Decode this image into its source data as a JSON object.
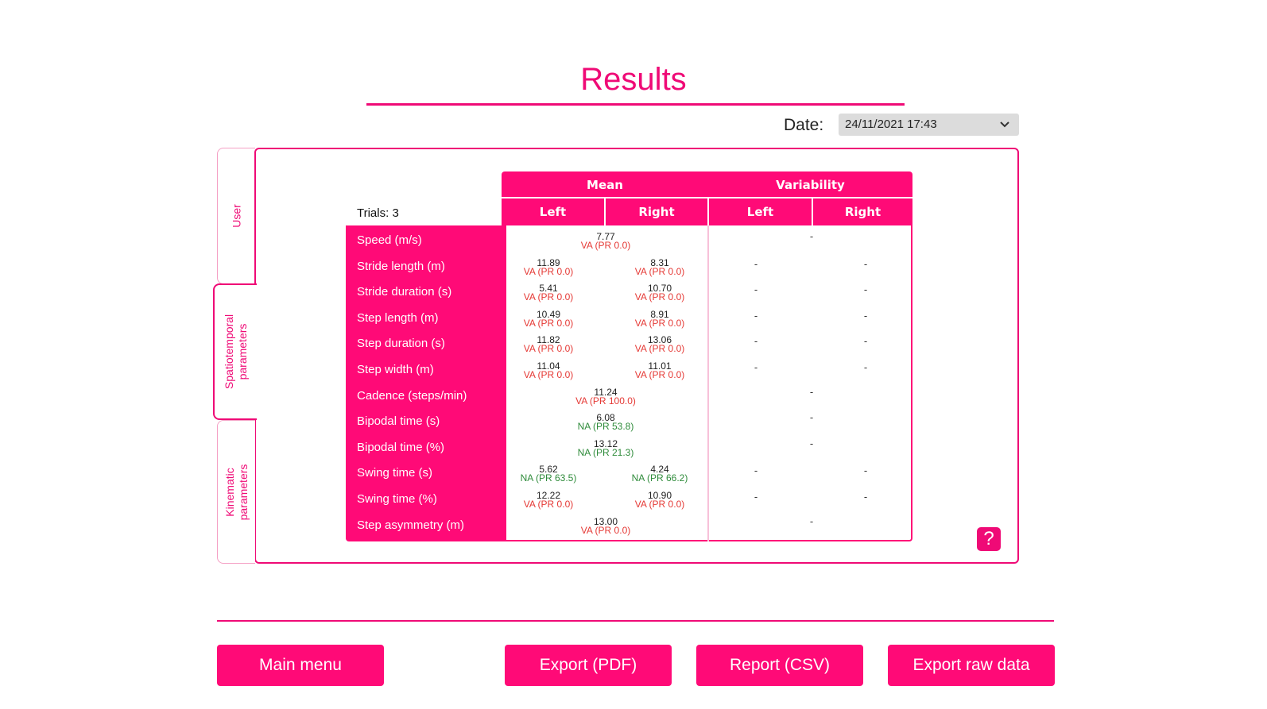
{
  "page": {
    "title": "Results"
  },
  "date": {
    "label": "Date:",
    "selected": "24/11/2021 17:43"
  },
  "tabs": [
    {
      "label": "User"
    },
    {
      "label": "Spatiotemporal\nparameters"
    },
    {
      "label": "Kinematic\nparameters"
    }
  ],
  "table": {
    "trials": "Trials: 3",
    "groups": [
      "Mean",
      "Variability"
    ],
    "subheaders": [
      "Left",
      "Right",
      "Left",
      "Right"
    ],
    "colors": {
      "VA": "#e53935",
      "NA": "#2e8b3a"
    },
    "rows": [
      {
        "label": "Speed (m/s)",
        "merged": true,
        "mean": {
          "v": "7.77",
          "s": "VA (PR 0.0)",
          "t": "VA"
        },
        "var": "-"
      },
      {
        "label": "Stride length (m)",
        "merged": false,
        "left": {
          "v": "11.89",
          "s": "VA (PR 0.0)",
          "t": "VA"
        },
        "right": {
          "v": "8.31",
          "s": "VA (PR 0.0)",
          "t": "VA"
        },
        "varL": "-",
        "varR": "-"
      },
      {
        "label": "Stride duration (s)",
        "merged": false,
        "left": {
          "v": "5.41",
          "s": "VA (PR 0.0)",
          "t": "VA"
        },
        "right": {
          "v": "10.70",
          "s": "VA (PR 0.0)",
          "t": "VA"
        },
        "varL": "-",
        "varR": "-"
      },
      {
        "label": "Step length (m)",
        "merged": false,
        "left": {
          "v": "10.49",
          "s": "VA (PR 0.0)",
          "t": "VA"
        },
        "right": {
          "v": "8.91",
          "s": "VA (PR 0.0)",
          "t": "VA"
        },
        "varL": "-",
        "varR": "-"
      },
      {
        "label": "Step duration (s)",
        "merged": false,
        "left": {
          "v": "11.82",
          "s": "VA (PR 0.0)",
          "t": "VA"
        },
        "right": {
          "v": "13.06",
          "s": "VA (PR 0.0)",
          "t": "VA"
        },
        "varL": "-",
        "varR": "-"
      },
      {
        "label": "Step width (m)",
        "merged": false,
        "left": {
          "v": "11.04",
          "s": "VA (PR 0.0)",
          "t": "VA"
        },
        "right": {
          "v": "11.01",
          "s": "VA (PR 0.0)",
          "t": "VA"
        },
        "varL": "-",
        "varR": "-"
      },
      {
        "label": "Cadence (steps/min)",
        "merged": true,
        "mean": {
          "v": "11.24",
          "s": "VA (PR 100.0)",
          "t": "VA"
        },
        "var": "-"
      },
      {
        "label": "Bipodal time (s)",
        "merged": true,
        "mean": {
          "v": "6.08",
          "s": "NA (PR 53.8)",
          "t": "NA"
        },
        "var": "-"
      },
      {
        "label": "Bipodal time (%)",
        "merged": true,
        "mean": {
          "v": "13.12",
          "s": "NA (PR 21.3)",
          "t": "NA"
        },
        "var": "-"
      },
      {
        "label": "Swing time (s)",
        "merged": false,
        "left": {
          "v": "5.62",
          "s": "NA (PR 63.5)",
          "t": "NA"
        },
        "right": {
          "v": "4.24",
          "s": "NA (PR 66.2)",
          "t": "NA"
        },
        "varL": "-",
        "varR": "-"
      },
      {
        "label": "Swing time (%)",
        "merged": false,
        "left": {
          "v": "12.22",
          "s": "VA (PR 0.0)",
          "t": "VA"
        },
        "right": {
          "v": "10.90",
          "s": "VA (PR 0.0)",
          "t": "VA"
        },
        "varL": "-",
        "varR": "-"
      },
      {
        "label": "Step asymmetry (m)",
        "merged": true,
        "mean": {
          "v": "13.00",
          "s": "VA (PR 0.0)",
          "t": "VA"
        },
        "var": "-"
      }
    ]
  },
  "help": {
    "label": "?"
  },
  "buttons": {
    "main_menu": "Main menu",
    "export_pdf": "Export (PDF)",
    "report_csv": "Report (CSV)",
    "export_raw": "Export raw data"
  },
  "icons": {
    "date_dropdown": "chevron-down-icon",
    "help": "help-icon"
  },
  "theme": {
    "accent": "#ef0a76"
  }
}
